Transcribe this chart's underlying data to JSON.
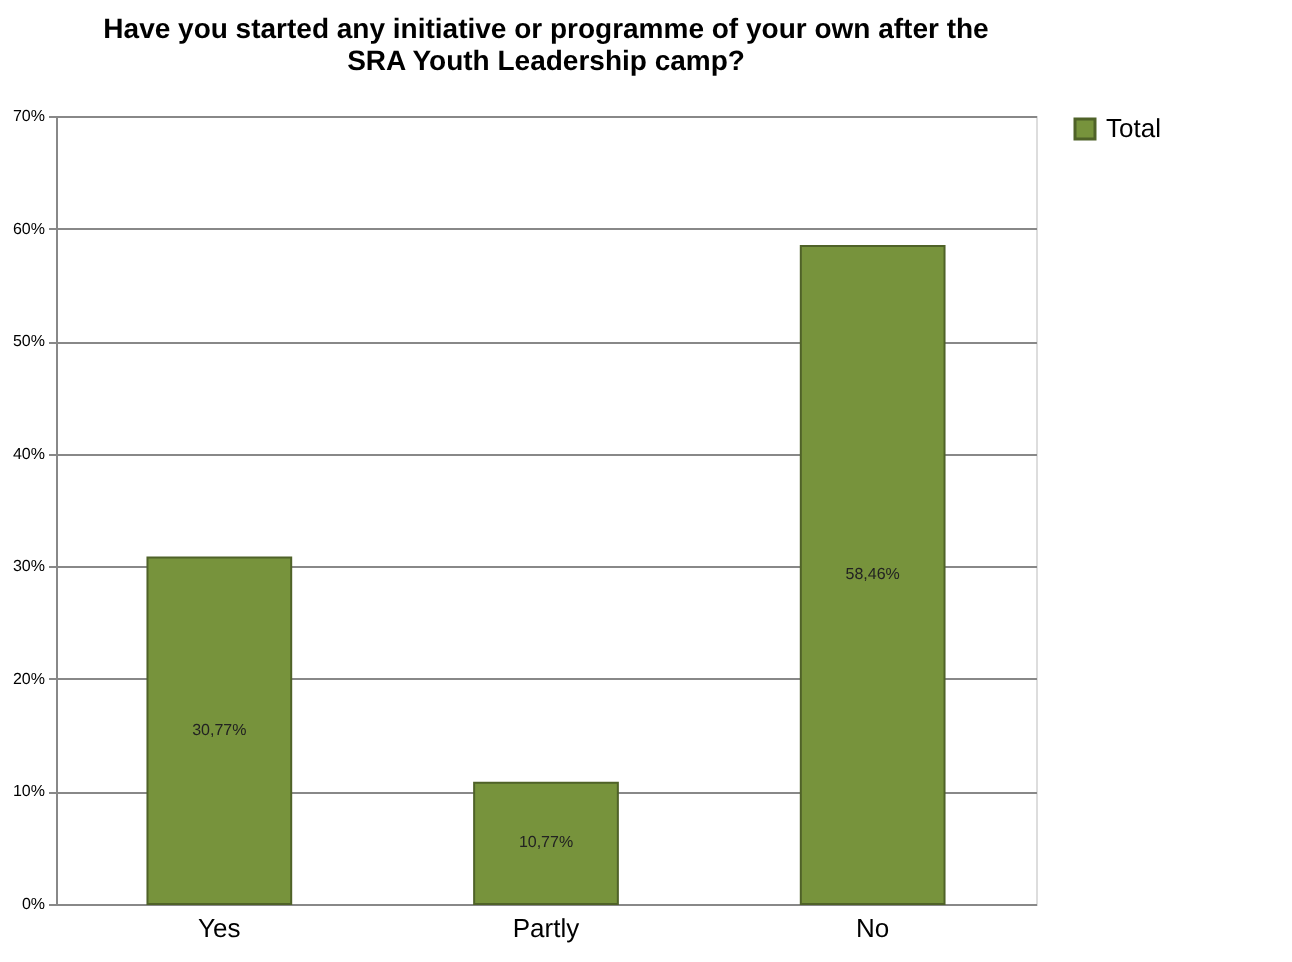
{
  "chart_data": {
    "type": "bar",
    "title": "Have you started any initiative or programme of your own after the SRA Youth Leadership camp?",
    "categories": [
      "Yes",
      "Partly",
      "No"
    ],
    "series": [
      {
        "name": "Total",
        "color": "#77933c",
        "values": [
          30.77,
          10.77,
          58.46
        ],
        "value_labels": [
          "30,77%",
          "10,77%",
          "58,46%"
        ]
      }
    ],
    "ylim": [
      0,
      70
    ],
    "yticks": [
      {
        "value": 0,
        "label": "0%"
      },
      {
        "value": 10,
        "label": "10%"
      },
      {
        "value": 20,
        "label": "20%"
      },
      {
        "value": 30,
        "label": "30%"
      },
      {
        "value": 40,
        "label": "40%"
      },
      {
        "value": 50,
        "label": "50%"
      },
      {
        "value": 60,
        "label": "60%"
      },
      {
        "value": 70,
        "label": "70%"
      }
    ],
    "grid": "y",
    "legend": "right"
  }
}
